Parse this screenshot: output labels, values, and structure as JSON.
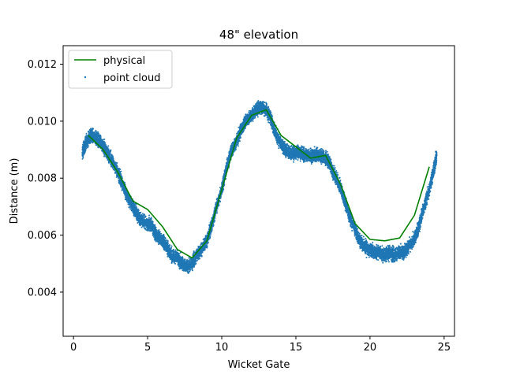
{
  "chart_data": {
    "type": "line",
    "title": "48\" elevation",
    "xlabel": "Wicket Gate",
    "ylabel": "Distance (m)",
    "xlim": [
      -0.7,
      25.7
    ],
    "ylim": [
      0.00245,
      0.01265
    ],
    "xticks": [
      0,
      5,
      10,
      15,
      20,
      25
    ],
    "xtick_labels": [
      "0",
      "5",
      "10",
      "15",
      "20",
      "25"
    ],
    "yticks": [
      0.004,
      0.006,
      0.008,
      0.01,
      0.012
    ],
    "ytick_labels": [
      "0.004",
      "0.006",
      "0.008",
      "0.010",
      "0.012"
    ],
    "grid": false,
    "legend_position": "top-left",
    "series": [
      {
        "name": "physical",
        "kind": "line",
        "color": "#008000",
        "x": [
          1,
          2,
          3,
          4,
          5,
          6,
          7,
          8,
          9,
          10,
          11,
          12,
          13,
          14,
          15,
          16,
          17,
          18,
          19,
          20,
          21,
          22,
          23,
          24
        ],
        "y": [
          0.0095,
          0.009,
          0.0082,
          0.0072,
          0.0069,
          0.0063,
          0.0055,
          0.0052,
          0.0058,
          0.0076,
          0.0094,
          0.0102,
          0.0104,
          0.0095,
          0.0091,
          0.0087,
          0.0088,
          0.0078,
          0.0064,
          0.00585,
          0.0058,
          0.0059,
          0.0067,
          0.0084
        ]
      },
      {
        "name": "point cloud",
        "kind": "scatter",
        "color": "#1f77b4",
        "x": [
          0.6,
          0.8,
          1.0,
          1.2,
          1.5,
          1.8,
          2.0,
          2.3,
          2.6,
          3.0,
          3.3,
          3.6,
          4.0,
          4.3,
          4.6,
          5.0,
          5.3,
          5.6,
          6.0,
          6.3,
          6.6,
          7.0,
          7.3,
          7.6,
          8.0,
          8.3,
          8.6,
          9.0,
          9.3,
          9.6,
          10.0,
          10.3,
          10.6,
          11.0,
          11.3,
          11.6,
          12.0,
          12.3,
          12.6,
          13.0,
          13.3,
          13.6,
          14.0,
          14.3,
          14.6,
          15.0,
          15.3,
          15.6,
          16.0,
          16.3,
          16.6,
          17.0,
          17.3,
          17.6,
          18.0,
          18.3,
          18.6,
          19.0,
          19.3,
          19.6,
          20.0,
          20.3,
          20.6,
          21.0,
          21.3,
          21.6,
          22.0,
          22.3,
          22.6,
          23.0,
          23.3,
          23.6,
          24.0,
          24.3,
          24.5
        ],
        "y": [
          0.0089,
          0.0092,
          0.0094,
          0.0095,
          0.0094,
          0.0093,
          0.0091,
          0.0089,
          0.0086,
          0.0082,
          0.0078,
          0.0074,
          0.007,
          0.0067,
          0.0065,
          0.0064,
          0.0063,
          0.006,
          0.0058,
          0.0056,
          0.0053,
          0.0052,
          0.005,
          0.0049,
          0.005,
          0.0053,
          0.0055,
          0.0058,
          0.0063,
          0.0069,
          0.0076,
          0.0083,
          0.0089,
          0.0093,
          0.0097,
          0.01,
          0.0102,
          0.0104,
          0.0105,
          0.0104,
          0.0101,
          0.0096,
          0.0092,
          0.009,
          0.0089,
          0.0089,
          0.0089,
          0.0088,
          0.0088,
          0.0088,
          0.0088,
          0.0087,
          0.0085,
          0.0081,
          0.0077,
          0.0072,
          0.0067,
          0.0062,
          0.0058,
          0.0056,
          0.0055,
          0.0054,
          0.0054,
          0.0053,
          0.0054,
          0.0053,
          0.0054,
          0.0054,
          0.0056,
          0.0059,
          0.0063,
          0.0069,
          0.0076,
          0.0083,
          0.0088
        ]
      }
    ]
  }
}
